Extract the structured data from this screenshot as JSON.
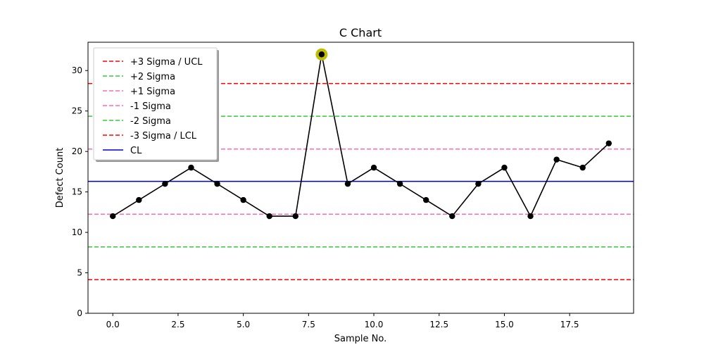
{
  "chart_data": {
    "type": "line",
    "title": "C Chart",
    "xlabel": "Sample No.",
    "ylabel": "Defect Count",
    "xlim": [
      -0.95,
      19.95
    ],
    "ylim": [
      0,
      33.5
    ],
    "xticks": [
      0.0,
      2.5,
      5.0,
      7.5,
      10.0,
      12.5,
      15.0,
      17.5
    ],
    "xtick_labels": [
      "0.0",
      "2.5",
      "5.0",
      "7.5",
      "10.0",
      "12.5",
      "15.0",
      "17.5"
    ],
    "yticks": [
      0,
      5,
      10,
      15,
      20,
      25,
      30
    ],
    "ytick_labels": [
      "0",
      "5",
      "10",
      "15",
      "20",
      "25",
      "30"
    ],
    "grid": false,
    "legend_position": "top-left",
    "series": [
      {
        "color": "#000000",
        "x": [
          0,
          1,
          2,
          3,
          4,
          5,
          6,
          7,
          8,
          9,
          10,
          11,
          12,
          13,
          14,
          15,
          16,
          17,
          18,
          19
        ],
        "values": [
          12,
          14,
          16,
          18,
          16,
          14,
          12,
          12,
          32,
          16,
          18,
          16,
          14,
          12,
          16,
          18,
          12,
          19,
          18,
          21
        ]
      }
    ],
    "highlighted_points": [
      {
        "x": 8,
        "y": 32,
        "color": "#bfbf00"
      }
    ],
    "reference_lines": [
      {
        "name": "+3 Sigma / UCL",
        "y": 28.4,
        "color": "#ff0000",
        "style": "dashed"
      },
      {
        "name": "+2 Sigma",
        "y": 24.35,
        "color": "#33cc33",
        "style": "dashed"
      },
      {
        "name": "+1 Sigma",
        "y": 20.3,
        "color": "#ff69b4",
        "style": "dashed"
      },
      {
        "name": "-1 Sigma",
        "y": 12.25,
        "color": "#ff69b4",
        "style": "dashed"
      },
      {
        "name": "-2 Sigma",
        "y": 8.2,
        "color": "#33cc33",
        "style": "dashed"
      },
      {
        "name": "-3 Sigma / LCL",
        "y": 4.15,
        "color": "#ff0000",
        "style": "dashed"
      },
      {
        "name": "CL",
        "y": 16.3,
        "color": "#0000cc",
        "style": "solid"
      }
    ]
  }
}
